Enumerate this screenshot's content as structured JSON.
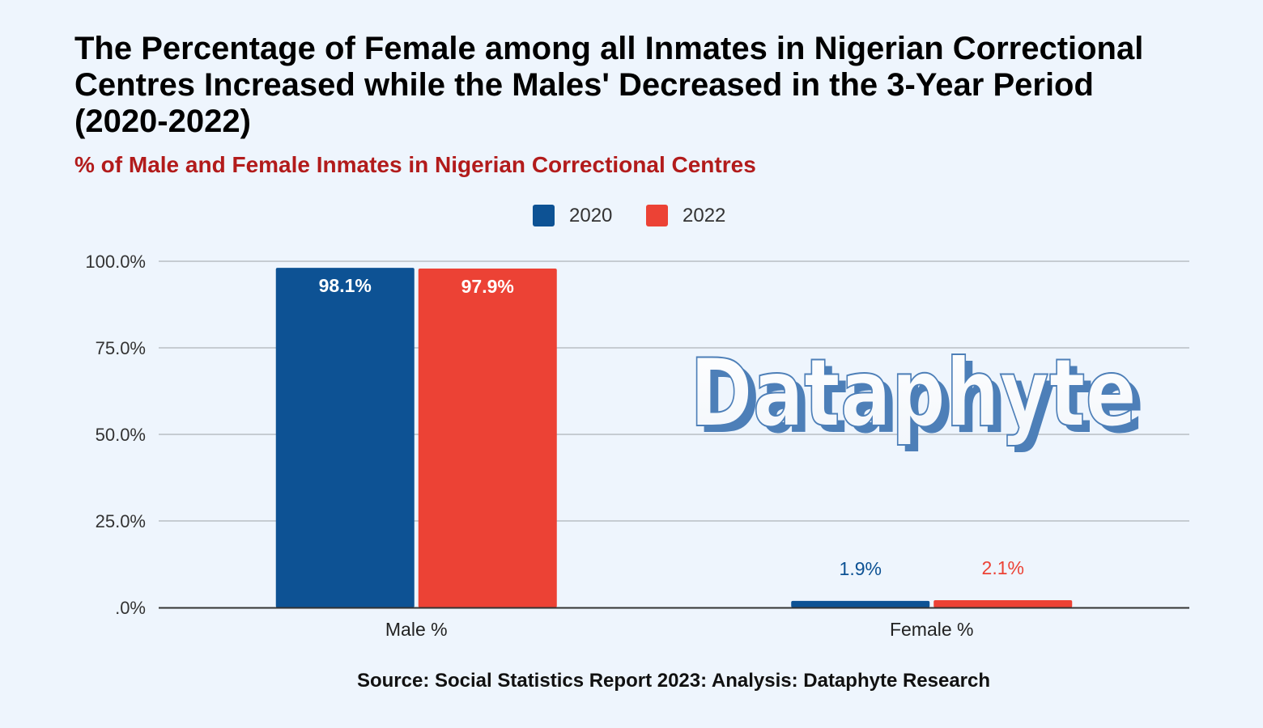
{
  "chart_data": {
    "type": "bar",
    "title": "The Percentage of Female among all Inmates in Nigerian Correctional Centres Increased while the Males' Decreased in the 3-Year Period (2020-2022)",
    "subtitle": "% of Male and Female Inmates in Nigerian Correctional Centres",
    "categories": [
      "Male %",
      "Female %"
    ],
    "series": [
      {
        "name": "2020",
        "color": "#0d5294",
        "values": [
          98.1,
          1.9
        ],
        "labels": [
          "98.1%",
          "1.9%"
        ]
      },
      {
        "name": "2022",
        "color": "#ec4235",
        "values": [
          97.9,
          2.1
        ],
        "labels": [
          "97.9%",
          "2.1%"
        ]
      }
    ],
    "ylim": [
      0,
      100
    ],
    "yticks": [
      0,
      25,
      50,
      75,
      100
    ],
    "ytick_labels": [
      ".0%",
      "25.0%",
      "50.0%",
      "75.0%",
      "100.0%"
    ],
    "xlabel": "",
    "ylabel": "",
    "grid": true,
    "legend": "top-center",
    "source": "Source: Social Statistics Report 2023: Analysis: Dataphyte Research"
  },
  "watermark": "Dataphyte"
}
